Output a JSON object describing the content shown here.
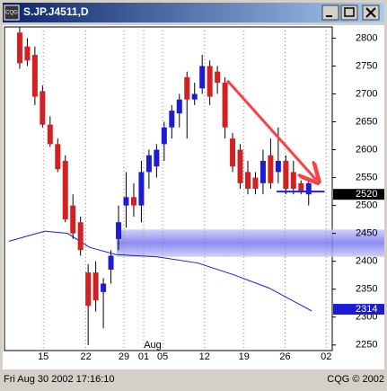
{
  "window": {
    "title": "S.JP.J4511,D",
    "icon": "CQG"
  },
  "chart_data": {
    "type": "candlestick",
    "open": [
      2810,
      2785,
      2770,
      2705,
      2645,
      2610,
      2580,
      2500,
      2470,
      2380,
      2380,
      2345,
      2385,
      2440,
      2500,
      2515,
      2500,
      2560,
      2570,
      2610,
      2640,
      2665,
      2730,
      2690,
      2710,
      2750,
      2740,
      2720,
      2620,
      2600,
      2560,
      2550,
      2540,
      2590,
      2560,
      2580,
      2560,
      2540,
      2520
    ],
    "high": [
      2820,
      2800,
      2785,
      2715,
      2660,
      2620,
      2590,
      2520,
      2480,
      2395,
      2400,
      2370,
      2420,
      2500,
      2560,
      2540,
      2580,
      2600,
      2610,
      2650,
      2680,
      2700,
      2740,
      2720,
      2770,
      2760,
      2750,
      2730,
      2630,
      2610,
      2580,
      2560,
      2600,
      2620,
      2640,
      2590,
      2580,
      2545,
      2550
    ],
    "low": [
      2745,
      2750,
      2680,
      2640,
      2605,
      2560,
      2470,
      2440,
      2410,
      2250,
      2310,
      2280,
      2360,
      2420,
      2460,
      2480,
      2470,
      2530,
      2550,
      2580,
      2620,
      2640,
      2620,
      2680,
      2700,
      2680,
      2700,
      2620,
      2560,
      2530,
      2520,
      2520,
      2520,
      2530,
      2540,
      2520,
      2520,
      2520,
      2500
    ],
    "close": [
      2755,
      2760,
      2695,
      2645,
      2610,
      2565,
      2475,
      2450,
      2420,
      2320,
      2330,
      2360,
      2410,
      2470,
      2515,
      2500,
      2560,
      2590,
      2600,
      2640,
      2670,
      2690,
      2690,
      2700,
      2750,
      2695,
      2720,
      2640,
      2570,
      2540,
      2530,
      2530,
      2580,
      2540,
      2580,
      2530,
      2530,
      2525,
      2540
    ],
    "up_color": "#1c1cd8",
    "down_color": "#d42020",
    "ma": {
      "color": "#1c1cd8",
      "x": [
        -1.4,
        3.3,
        6.3,
        9.2,
        12.7,
        18.1,
        23.4,
        28.1,
        32.8,
        38.4
      ],
      "values": [
        2436,
        2454,
        2450,
        2425,
        2412,
        2408,
        2397,
        2376,
        2352,
        2311
      ]
    },
    "zone": {
      "color": "#8c8cf4",
      "x": 12.75,
      "values": [
        2408,
        2457
      ]
    },
    "trendline": {
      "color": "#ff4040",
      "x": [
        27.3,
        39
      ],
      "values": [
        2724,
        2546
      ]
    },
    "support": {
      "color": "#2020e0",
      "x": [
        33.8,
        40.1
      ],
      "value": 2525
    },
    "last_price": 2520,
    "ma_last": 2314,
    "xlim": [
      -2,
      41.1
    ],
    "ylim": [
      2240,
      2820
    ],
    "yticks": [
      2250,
      2300,
      2350,
      2400,
      2450,
      2500,
      2550,
      2600,
      2650,
      2700,
      2750,
      2800
    ],
    "xticks": [
      {
        "value": 3.1,
        "label": "15"
      },
      {
        "value": 8.7,
        "label": "22"
      },
      {
        "value": 13.7,
        "label": "29"
      },
      {
        "value": 16.3,
        "label": "01"
      },
      {
        "value": 18.8,
        "label": "05"
      },
      {
        "value": 24.3,
        "label": "12"
      },
      {
        "value": 29.5,
        "label": "19"
      },
      {
        "value": 34.9,
        "label": "26"
      },
      {
        "value": 40.3,
        "label": "02"
      }
    ],
    "month_label": "Aug",
    "grid": true
  },
  "status": {
    "time": "Fri Aug 30 2002 17:16:10",
    "copyright": "CQG © 2002"
  }
}
